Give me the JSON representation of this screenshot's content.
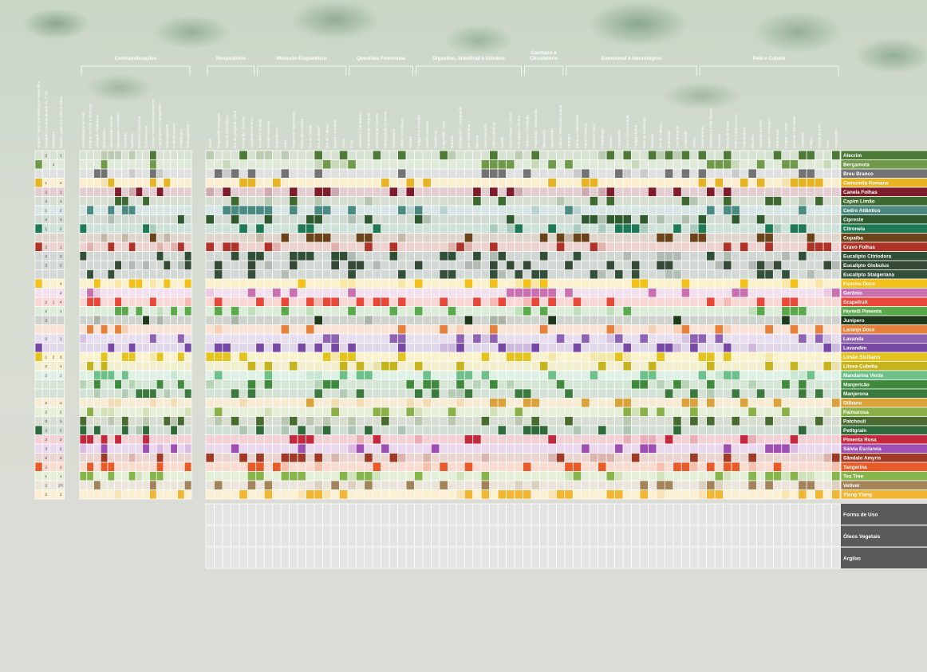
{
  "chart_data": {
    "type": "heatmap",
    "title": "",
    "left_columns": [
      "Segura - Sem contraindicação Específica",
      "Gestação (Contraindicado no 1º tri)",
      "Fototóxico",
      "Máximo gotas em 10ml de base"
    ],
    "categories": [
      {
        "name": "Contraindicações",
        "columns": [
          "Sensibilizante de Pele",
          "Irritante da Pele e Mucosas",
          "Limitação Pediátrica",
          "Neurotóxico",
          "Hipertensão Arterial",
          "Hiperplasia Prostática",
          "Gestação",
          "Epilepsia",
          "Potencial Hormonal",
          "Endometriose",
          "Câncer Hormônio dependente",
          "Carcinogênico / Mutagênico",
          "Anticoagulante",
          "Antiinflamatório",
          "Antialérgico",
          "Anticoagulante"
        ]
      },
      {
        "name": "Respiratório",
        "columns": [
          "Tosse",
          "Respiração Alongada",
          "Sistema Imunológico",
          "Dor de garganta / gripe",
          "Bronquite / Sinusite",
          "Congestionamento"
        ]
      },
      {
        "name": "Músculo-Esquelético",
        "columns": [
          "Tensões Cervicais",
          "Tensão Muscular",
          "Reumatismo",
          "Gota",
          "Espasmos Musculares",
          "Dores Musculares",
          "Dor de Ouvido",
          "Dor de Dente",
          "Dor de Cabeça",
          "Bursite / Tendinite",
          "Artrite"
        ]
      },
      {
        "name": "Questões Femininas",
        "columns": [
          "TPM",
          "Vaginites / Candidíase",
          "Menstruação Irregular",
          "Menstruação Ausente",
          "Menstruação Dolorosa",
          "Menopausa",
          "Libido / Afrodisíaco",
          "Celulite"
        ]
      },
      {
        "name": "Digestivo, Intestinal e Urinário",
        "columns": [
          "Fadiga Pós-Prandial",
          "Gastrite Nervosa",
          "Flatulência",
          "Indigestão / Azia",
          "Náusea",
          "Obstipação / Constipação",
          "Dor Abdominal",
          "Diarreia",
          "Desintoxicação",
          "Cólica Intestinal",
          "Apetite",
          "Cólica Renal / Cálculo",
          "Anti-séptico Urinário"
        ]
      },
      {
        "name": "Cardíaco e Circulatório",
        "columns": [
          "Varizes e Circulação",
          "Palpitação / Taquicardia",
          "Hipotensão",
          "Hipertensão",
          "Edema / Retenção Líquida"
        ]
      },
      {
        "name": "Emocional e Neurológico",
        "columns": [
          "Vertigem",
          "Tristeza / Melancolia",
          "Mente Confusa",
          "Memória Fraca",
          "Irritabilidade",
          "Insônia",
          "Inquietação",
          "Foco / Concentração",
          "Fadiga Mental",
          "Falta de Confiança",
          "Estresse",
          "Dor de Cabeça",
          "Depressão",
          "Concentração",
          "Ansiedade",
          "Apatia"
        ]
      },
      {
        "name": "Pele e Cabelo",
        "columns": [
          "Queimaduras",
          "Seborreia e Pele Oleosa",
          "Psoríase",
          "Picada de Inseto",
          "Pele e Cabelo Secos",
          "Pele Madura",
          "Micoses",
          "Manchas de Pele",
          "Herpes / Verrugas",
          "Ferimentos",
          "Feridas / Cortes",
          "Eczema / Dermatite",
          "Cicatrizes",
          "Caspa",
          "Alergia de pele",
          "Acne",
          "Antisséptico"
        ]
      }
    ],
    "rows": [
      {
        "name": "Alecrim",
        "color": "#4e7a38",
        "left": [
          "",
          "2",
          "",
          "1"
        ]
      },
      {
        "name": "Bergamota",
        "color": "#6e9a4a",
        "left": [
          "",
          "",
          "1",
          ""
        ]
      },
      {
        "name": "Breu Branco",
        "color": "#737373",
        "left": [
          "",
          "",
          "",
          ""
        ]
      },
      {
        "name": "Camomila Romana",
        "color": "#e6b325",
        "left": [
          "",
          "1",
          "",
          "2"
        ]
      },
      {
        "name": "Canela Folhas",
        "color": "#7e1c2c",
        "left": [
          "",
          "2",
          "",
          "1"
        ]
      },
      {
        "name": "Capim Limão",
        "color": "#3e6a30",
        "left": [
          "",
          "2",
          "",
          "1"
        ]
      },
      {
        "name": "Cedro Atlântico",
        "color": "#4a8a82",
        "left": [
          "",
          "1",
          "",
          "2"
        ]
      },
      {
        "name": "Cipreste",
        "color": "#2e5a2e",
        "left": [
          "",
          "2",
          "",
          "1"
        ]
      },
      {
        "name": "Citronela",
        "color": "#1e7a54",
        "left": [
          "",
          "1",
          "",
          "2"
        ]
      },
      {
        "name": "Copaíba",
        "color": "#6a4418",
        "left": [
          "",
          "",
          "",
          ""
        ]
      },
      {
        "name": "Cravo Folhas",
        "color": "#b03228",
        "left": [
          "",
          "2",
          "",
          "1"
        ]
      },
      {
        "name": "Eucalipto Citriodora",
        "color": "#2f4f36",
        "left": [
          "",
          "2",
          "",
          "2"
        ]
      },
      {
        "name": "Eucalipto Globulus",
        "color": "#354a36",
        "left": [
          "",
          "2",
          "",
          "2"
        ]
      },
      {
        "name": "Eucalipto Staigeriana",
        "color": "#34503a",
        "left": [
          "",
          "",
          "",
          ""
        ]
      },
      {
        "name": "Funcho Doce",
        "color": "#f3c11a",
        "left": [
          "",
          "",
          "",
          "4"
        ]
      },
      {
        "name": "Gerânio",
        "color": "#c970b0",
        "left": [
          "",
          "",
          "",
          "2"
        ]
      },
      {
        "name": "Grapefruit",
        "color": "#e8473a",
        "left": [
          "",
          "2",
          "1",
          "4"
        ]
      },
      {
        "name": "Hortelã Pimenta",
        "color": "#5aaa4c",
        "left": [
          "",
          "2",
          "",
          "1"
        ]
      },
      {
        "name": "Junípero",
        "color": "#1e3a1a",
        "left": [
          "",
          "2",
          "",
          ""
        ]
      },
      {
        "name": "Laranja Doce",
        "color": "#e7803a",
        "left": [
          "",
          "",
          "",
          ""
        ]
      },
      {
        "name": "Lavanda",
        "color": "#8e63b4",
        "left": [
          "",
          "2",
          "",
          "1"
        ]
      },
      {
        "name": "Lavandim",
        "color": "#7848a6",
        "left": [
          "",
          "",
          "",
          ""
        ]
      },
      {
        "name": "Limão Siciliano",
        "color": "#e3c31c",
        "left": [
          "",
          "1",
          "2",
          "3"
        ]
      },
      {
        "name": "Litsea Cubeba",
        "color": "#c7b31e",
        "left": [
          "",
          "2",
          "",
          "1"
        ]
      },
      {
        "name": "Mandarina Verde",
        "color": "#6ec08a",
        "left": [
          "",
          "2",
          "",
          "1"
        ]
      },
      {
        "name": "Manjericão",
        "color": "#3f8a3c",
        "left": [
          "",
          "",
          "",
          ""
        ]
      },
      {
        "name": "Manjerona",
        "color": "#3a7a3e",
        "left": [
          "",
          "",
          "",
          ""
        ]
      },
      {
        "name": "Olíbano",
        "color": "#d9a23a",
        "left": [
          "",
          "2",
          "",
          "1"
        ]
      },
      {
        "name": "Palmarosa",
        "color": "#8ab048",
        "left": [
          "",
          "2",
          "",
          "2"
        ]
      },
      {
        "name": "Patchouli",
        "color": "#4a6b2e",
        "left": [
          "",
          "2",
          "",
          "1"
        ]
      },
      {
        "name": "Petitgrain",
        "color": "#2e6a3a",
        "left": [
          "",
          "2",
          "",
          "2"
        ]
      },
      {
        "name": "Pimenta Rosa",
        "color": "#c4283c",
        "left": [
          "",
          "2",
          "",
          "2"
        ]
      },
      {
        "name": "Sálvia Esclareia",
        "color": "#9e4fb4",
        "left": [
          "",
          "3",
          "",
          "2"
        ]
      },
      {
        "name": "Sândalo Amyris",
        "color": "#a03a26",
        "left": [
          "",
          "2",
          "",
          "2"
        ]
      },
      {
        "name": "Tangerina",
        "color": "#e85a28",
        "left": [
          "",
          "2",
          "",
          "2"
        ]
      },
      {
        "name": "Tea Tree",
        "color": "#86b54c",
        "left": [
          "",
          "1",
          "",
          "1"
        ]
      },
      {
        "name": "Vetiver",
        "color": "#a3845a",
        "left": [
          "",
          "2",
          "",
          "2½"
        ]
      },
      {
        "name": "Ylang Ylang",
        "color": "#f0b634",
        "left": [
          "",
          "2",
          "",
          "2"
        ]
      }
    ],
    "footer_rows": [
      "Forma de Uso",
      "Óleos Vegetais",
      "Argilas"
    ]
  }
}
